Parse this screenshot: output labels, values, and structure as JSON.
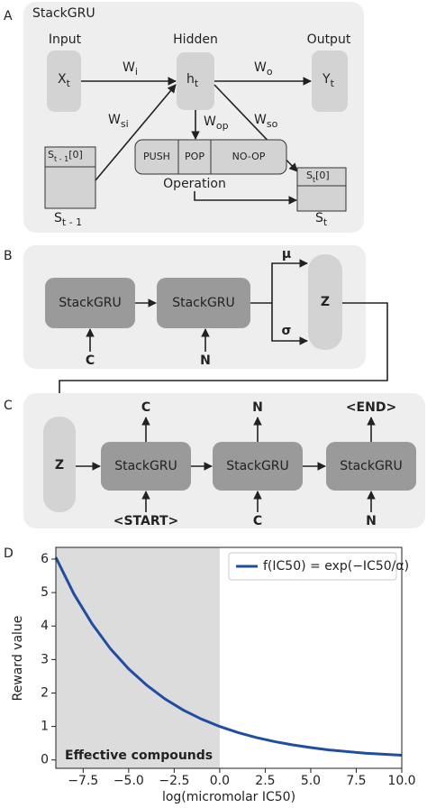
{
  "panel_labels": [
    "A",
    "B",
    "C",
    "D"
  ],
  "panel_a": {
    "title": "StackGRU",
    "input": "Input",
    "hidden": "Hidden",
    "output": "Output",
    "x": {
      "text": "X",
      "sub": "t"
    },
    "h": {
      "text": "h",
      "sub": "t"
    },
    "y": {
      "text": "Y",
      "sub": "t"
    },
    "w_i": {
      "text": "W",
      "sub": "i"
    },
    "w_o": {
      "text": "W",
      "sub": "o"
    },
    "w_si": {
      "text": "W",
      "sub": "si"
    },
    "w_op": {
      "text": "W",
      "sub": "op"
    },
    "w_so": {
      "text": "W",
      "sub": "so"
    },
    "stack_prev_top": {
      "text": "S",
      "sub": "t - 1",
      "suffix": "[0]"
    },
    "stack_prev": {
      "text": "S",
      "sub": "t - 1"
    },
    "stack_top": {
      "text": "S",
      "sub": "t",
      "suffix": "[0]"
    },
    "stack": {
      "text": "S",
      "sub": "t"
    },
    "operations": [
      "PUSH",
      "POP",
      "NO-OP"
    ],
    "operation": "Operation"
  },
  "panel_b": {
    "cells": [
      "StackGRU",
      "StackGRU"
    ],
    "inputs": [
      "C",
      "N"
    ],
    "mu": "μ",
    "sigma": "σ",
    "z": "Z"
  },
  "panel_c": {
    "z": "Z",
    "cells": [
      "StackGRU",
      "StackGRU",
      "StackGRU"
    ],
    "outputs": [
      "C",
      "N",
      "<END>"
    ],
    "inputs": [
      "<START>",
      "C",
      "N"
    ]
  },
  "chart_data": {
    "type": "line",
    "xlabel": "log(micromolar IC50)",
    "ylabel": "Reward value",
    "x": [
      -9,
      -8,
      -7,
      -6,
      -5,
      -4,
      -3,
      -2,
      -1,
      0,
      1,
      2,
      3,
      4,
      5,
      6,
      7,
      8,
      9,
      10
    ],
    "series": [
      {
        "name": "f(IC50) = exp(−IC50/α)",
        "color": "#1f4ea0",
        "values": [
          6.05,
          4.95,
          4.06,
          3.32,
          2.72,
          2.23,
          1.82,
          1.49,
          1.22,
          1,
          0.82,
          0.67,
          0.55,
          0.45,
          0.37,
          0.3,
          0.25,
          0.2,
          0.17,
          0.14
        ]
      }
    ],
    "shade_x": [
      -9,
      0
    ],
    "shade_label": "Effective compounds",
    "shade_color": "#dcdcdc",
    "xlim": [
      -9,
      10
    ],
    "ylim": [
      -0.25,
      6.35
    ],
    "xticks": [
      {
        "value": -7.5,
        "label": "−7.5"
      },
      {
        "value": -5,
        "label": "−5.0"
      },
      {
        "value": -2.5,
        "label": "−2.5"
      },
      {
        "value": 0,
        "label": "0.0"
      },
      2.5,
      {
        "value": 5,
        "label": "5.0"
      },
      7.5,
      {
        "value": 10,
        "label": "10.0"
      }
    ],
    "yticks": [
      0,
      1,
      2,
      3,
      4,
      5,
      6
    ],
    "legend": "upper right"
  }
}
